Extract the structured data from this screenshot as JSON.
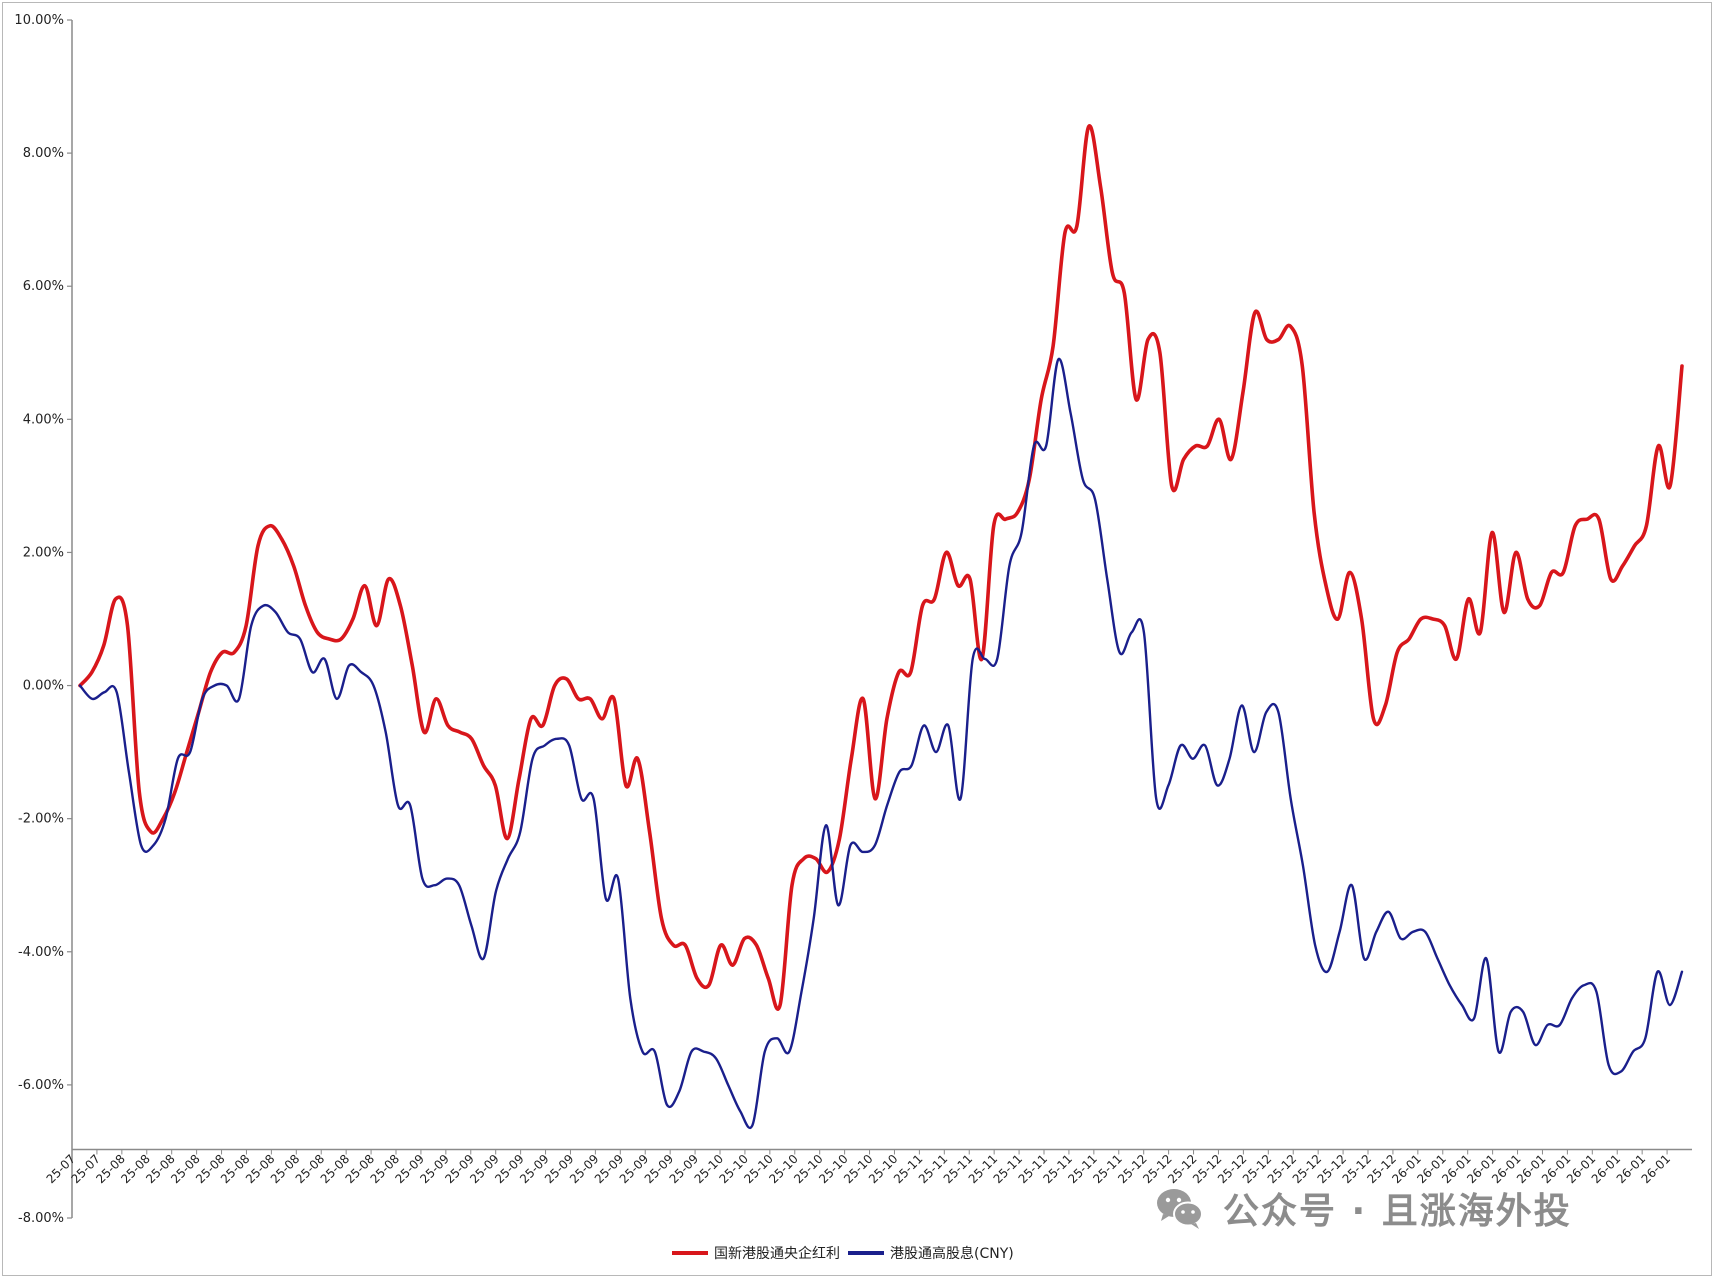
{
  "chart_data": {
    "type": "line",
    "title": "",
    "xlabel": "",
    "ylabel": "",
    "ylim": [
      -0.08,
      0.1
    ],
    "yticks": [
      "10.00%",
      "8.00%",
      "6.00%",
      "4.00%",
      "2.00%",
      "0.00%",
      "-2.00%",
      "-4.00%",
      "-6.00%",
      "-8.00%"
    ],
    "ytick_values": [
      0.1,
      0.08,
      0.06,
      0.04,
      0.02,
      0.0,
      -0.02,
      -0.04,
      -0.06,
      -0.08
    ],
    "xticks": [
      "25-07",
      "25-07",
      "25-08",
      "25-08",
      "25-08",
      "25-08",
      "25-08",
      "25-08",
      "25-08",
      "25-08",
      "25-08",
      "25-08",
      "25-08",
      "25-08",
      "25-09",
      "25-09",
      "25-09",
      "25-09",
      "25-09",
      "25-09",
      "25-09",
      "25-09",
      "25-09",
      "25-09",
      "25-09",
      "25-09",
      "25-10",
      "25-10",
      "25-10",
      "25-10",
      "25-10",
      "25-10",
      "25-10",
      "25-10",
      "25-11",
      "25-11",
      "25-11",
      "25-11",
      "25-11",
      "25-11",
      "25-11",
      "25-11",
      "25-11",
      "25-12",
      "25-12",
      "25-12",
      "25-12",
      "25-12",
      "25-12",
      "25-12",
      "25-12",
      "25-12",
      "25-12",
      "25-12",
      "26-01",
      "26-01",
      "26-01",
      "26-01",
      "26-01",
      "26-01",
      "26-01",
      "26-01",
      "26-01",
      "26-01",
      "26-01"
    ],
    "grid": false,
    "legend_position": "bottom-center",
    "series": [
      {
        "name": "国新港股通央企红利",
        "color": "#d8161b",
        "values": [
          0.0,
          0.002,
          0.006,
          0.013,
          0.009,
          -0.016,
          -0.022,
          -0.02,
          -0.016,
          -0.01,
          -0.004,
          0.002,
          0.005,
          0.005,
          0.009,
          0.021,
          0.024,
          0.022,
          0.018,
          0.012,
          0.008,
          0.007,
          0.007,
          0.01,
          0.015,
          0.009,
          0.016,
          0.012,
          0.003,
          -0.007,
          -0.002,
          -0.006,
          -0.007,
          -0.008,
          -0.012,
          -0.015,
          -0.023,
          -0.014,
          -0.005,
          -0.006,
          0.0,
          0.001,
          -0.002,
          -0.002,
          -0.005,
          -0.002,
          -0.015,
          -0.011,
          -0.022,
          -0.035,
          -0.039,
          -0.039,
          -0.044,
          -0.045,
          -0.039,
          -0.042,
          -0.038,
          -0.039,
          -0.044,
          -0.048,
          -0.03,
          -0.026,
          -0.026,
          -0.028,
          -0.023,
          -0.011,
          -0.002,
          -0.017,
          -0.005,
          0.002,
          0.002,
          0.012,
          0.013,
          0.02,
          0.015,
          0.016,
          0.004,
          0.024,
          0.025,
          0.026,
          0.031,
          0.043,
          0.051,
          0.068,
          0.069,
          0.084,
          0.075,
          0.062,
          0.059,
          0.043,
          0.052,
          0.05,
          0.03,
          0.034,
          0.036,
          0.036,
          0.04,
          0.034,
          0.044,
          0.056,
          0.052,
          0.052,
          0.054,
          0.048,
          0.026,
          0.015,
          0.01,
          0.017,
          0.01,
          -0.005,
          -0.003,
          0.005,
          0.007,
          0.01,
          0.01,
          0.009,
          0.004,
          0.013,
          0.008,
          0.023,
          0.011,
          0.02,
          0.013,
          0.012,
          0.017,
          0.017,
          0.024,
          0.025,
          0.025,
          0.016,
          0.018,
          0.021,
          0.024,
          0.036,
          0.03,
          0.048
        ]
      },
      {
        "name": "港股通高股息(CNY)",
        "color": "#1a1f8c",
        "values": [
          0.0,
          -0.002,
          -0.001,
          -0.001,
          -0.013,
          -0.024,
          -0.024,
          -0.02,
          -0.011,
          -0.01,
          -0.002,
          0.0,
          0.0,
          -0.002,
          0.009,
          0.012,
          0.011,
          0.008,
          0.007,
          0.002,
          0.004,
          -0.002,
          0.003,
          0.002,
          0.0,
          -0.007,
          -0.018,
          -0.018,
          -0.029,
          -0.03,
          -0.029,
          -0.03,
          -0.036,
          -0.041,
          -0.031,
          -0.026,
          -0.022,
          -0.011,
          -0.009,
          -0.008,
          -0.009,
          -0.017,
          -0.017,
          -0.032,
          -0.029,
          -0.047,
          -0.055,
          -0.055,
          -0.063,
          -0.061,
          -0.055,
          -0.055,
          -0.056,
          -0.06,
          -0.064,
          -0.066,
          -0.055,
          -0.053,
          -0.055,
          -0.046,
          -0.035,
          -0.021,
          -0.033,
          -0.024,
          -0.025,
          -0.024,
          -0.018,
          -0.013,
          -0.012,
          -0.006,
          -0.01,
          -0.006,
          -0.017,
          0.004,
          0.004,
          0.004,
          0.018,
          0.023,
          0.036,
          0.036,
          0.049,
          0.041,
          0.031,
          0.028,
          0.016,
          0.005,
          0.008,
          0.008,
          -0.017,
          -0.015,
          -0.009,
          -0.011,
          -0.009,
          -0.015,
          -0.011,
          -0.003,
          -0.01,
          -0.004,
          -0.004,
          -0.017,
          -0.027,
          -0.039,
          -0.043,
          -0.037,
          -0.03,
          -0.041,
          -0.037,
          -0.034,
          -0.038,
          -0.037,
          -0.037,
          -0.041,
          -0.045,
          -0.048,
          -0.05,
          -0.041,
          -0.055,
          -0.049,
          -0.049,
          -0.054,
          -0.051,
          -0.051,
          -0.047,
          -0.045,
          -0.046,
          -0.057,
          -0.058,
          -0.055,
          -0.053,
          -0.043,
          -0.048,
          -0.043
        ]
      }
    ]
  },
  "watermark": {
    "icon": "wechat-icon",
    "text": "公众号 · 且涨海外投"
  }
}
